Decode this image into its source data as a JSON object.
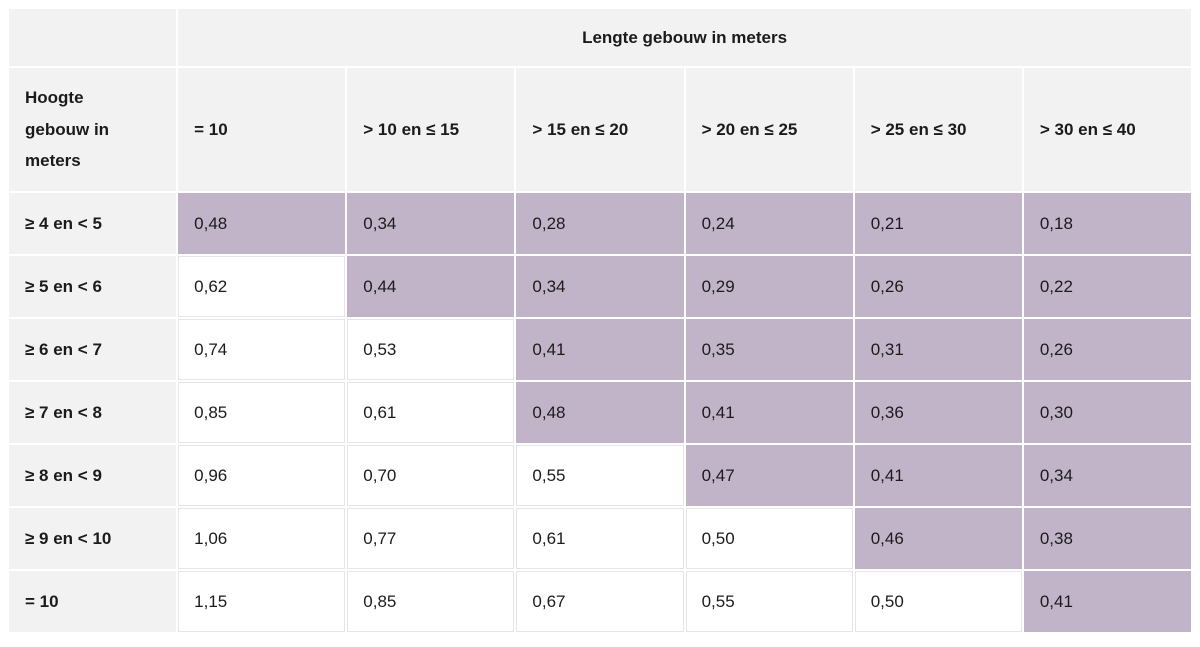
{
  "table": {
    "col_group_header": "Lengte gebouw in meters",
    "row_group_header": "Hoogte\ngebouw in\nmeters",
    "columns": [
      "= 10",
      "> 10 en ≤ 15",
      "> 15 en ≤ 20",
      "> 20 en ≤ 25",
      "> 25 en ≤ 30",
      "> 30 en ≤ 40"
    ],
    "rows": [
      {
        "label": "≥ 4 en < 5",
        "values": [
          "0,48",
          "0,34",
          "0,28",
          "0,24",
          "0,21",
          "0,18"
        ],
        "highlight_from": 0
      },
      {
        "label": "≥ 5 en < 6",
        "values": [
          "0,62",
          "0,44",
          "0,34",
          "0,29",
          "0,26",
          "0,22"
        ],
        "highlight_from": 1
      },
      {
        "label": "≥ 6 en < 7",
        "values": [
          "0,74",
          "0,53",
          "0,41",
          "0,35",
          "0,31",
          "0,26"
        ],
        "highlight_from": 2
      },
      {
        "label": "≥ 7 en < 8",
        "values": [
          "0,85",
          "0,61",
          "0,48",
          "0,41",
          "0,36",
          "0,30"
        ],
        "highlight_from": 2
      },
      {
        "label": "≥ 8 en < 9",
        "values": [
          "0,96",
          "0,70",
          "0,55",
          "0,47",
          "0,41",
          "0,34"
        ],
        "highlight_from": 3
      },
      {
        "label": "≥ 9 en < 10",
        "values": [
          "1,06",
          "0,77",
          "0,61",
          "0,50",
          "0,46",
          "0,38"
        ],
        "highlight_from": 4
      },
      {
        "label": "= 10",
        "values": [
          "1,15",
          "0,85",
          "0,67",
          "0,55",
          "0,50",
          "0,41"
        ],
        "highlight_from": 5
      }
    ],
    "colors": {
      "header_bg": "#f2f2f2",
      "highlight_bg": "#c2b4c8",
      "cell_border": "#e6e6e6",
      "text": "#1b1b1b",
      "page_bg": "#ffffff"
    }
  },
  "chart_data": {
    "type": "table",
    "column_group_label": "Lengte gebouw in meters",
    "row_group_label": "Hoogte gebouw in meters",
    "columns": [
      "= 10",
      "> 10 en ≤ 15",
      "> 15 en ≤ 20",
      "> 20 en ≤ 25",
      "> 25 en ≤ 30",
      "> 30 en ≤ 40"
    ],
    "row_labels": [
      "≥ 4 en < 5",
      "≥ 5 en < 6",
      "≥ 6 en < 7",
      "≥ 7 en < 8",
      "≥ 8 en < 9",
      "≥ 9 en < 10",
      "= 10"
    ],
    "values": [
      [
        0.48,
        0.34,
        0.28,
        0.24,
        0.21,
        0.18
      ],
      [
        0.62,
        0.44,
        0.34,
        0.29,
        0.26,
        0.22
      ],
      [
        0.74,
        0.53,
        0.41,
        0.35,
        0.31,
        0.26
      ],
      [
        0.85,
        0.61,
        0.48,
        0.41,
        0.36,
        0.3
      ],
      [
        0.96,
        0.7,
        0.55,
        0.47,
        0.41,
        0.34
      ],
      [
        1.06,
        0.77,
        0.61,
        0.5,
        0.46,
        0.38
      ],
      [
        1.15,
        0.85,
        0.67,
        0.55,
        0.5,
        0.41
      ]
    ],
    "highlighted_from_column_index": [
      0,
      1,
      2,
      2,
      3,
      4,
      5
    ],
    "value_format": "decimal-comma",
    "highlight_color": "#c2b4c8"
  }
}
